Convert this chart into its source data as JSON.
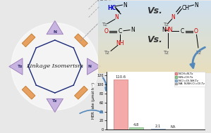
{
  "bar_values_g1": [
    110.6,
    4.8
  ],
  "bar_values_g2": [
    2.1,
    0
  ],
  "bar_colors": [
    "#f5aaaa",
    "#aad8aa",
    "#aabbd8",
    "#cccccc"
  ],
  "bar_edge_colors": [
    "#cc7777",
    "#77aa77",
    "#7799bb",
    "#999999"
  ],
  "bar_labels_legend": [
    "N-CH=N-Tz",
    "N-N=CH-Tz",
    "N-C(=O)-NH-Tz",
    "NA  N-NH-C(=O)-Tz"
  ],
  "bar_annots_g1": [
    "110.6",
    "4.8"
  ],
  "bar_annots_g2": [
    "2.1",
    "NA"
  ],
  "ylabel": "HER rate (μmol h⁻¹)",
  "ylim": [
    0,
    128
  ],
  "yticks": [
    0,
    20,
    40,
    60,
    80,
    100,
    120
  ],
  "bg_color": "#e8e8e8",
  "ring_tri_face": "#c8b4e0",
  "ring_tri_edge": "#9878b8",
  "ring_rect_face": "#e8a060",
  "ring_rect_edge": "#c07828",
  "ring_line_color": "#1a2878",
  "center_text": "Linkage Isomerism",
  "chem_box_bg_top": "#dce8f0",
  "chem_box_bg_bot": "#e8e0c8",
  "arrow_color": "#5588bb",
  "dashed_line_color": "#888888"
}
